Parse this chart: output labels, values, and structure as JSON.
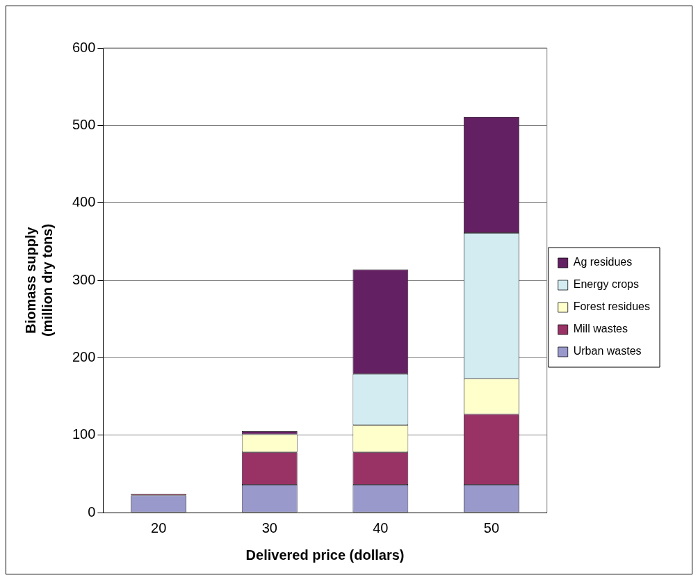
{
  "chart_data": {
    "type": "bar",
    "stacked": true,
    "xlabel": "Delivered price (dollars)",
    "ylabel": "Biomass supply\n(million dry tons)",
    "categories": [
      "20",
      "30",
      "40",
      "50"
    ],
    "series": [
      {
        "name": "Urban wastes",
        "color": "#9999cc",
        "values": [
          22,
          36,
          36,
          36
        ]
      },
      {
        "name": "Mill wastes",
        "color": "#993366",
        "values": [
          2,
          42,
          42,
          91
        ]
      },
      {
        "name": "Forest residues",
        "color": "#ffffcc",
        "values": [
          null,
          23,
          35,
          46
        ]
      },
      {
        "name": "Energy crops",
        "color": "#d2ecf2",
        "values": [
          null,
          null,
          66,
          188
        ]
      },
      {
        "name": "Ag residues",
        "color": "#632062",
        "values": [
          null,
          4,
          135,
          150
        ]
      }
    ],
    "ylim": [
      0,
      600
    ],
    "yticks": [
      0,
      100,
      200,
      300,
      400,
      500,
      600
    ],
    "grid": "y",
    "legend": "right"
  }
}
